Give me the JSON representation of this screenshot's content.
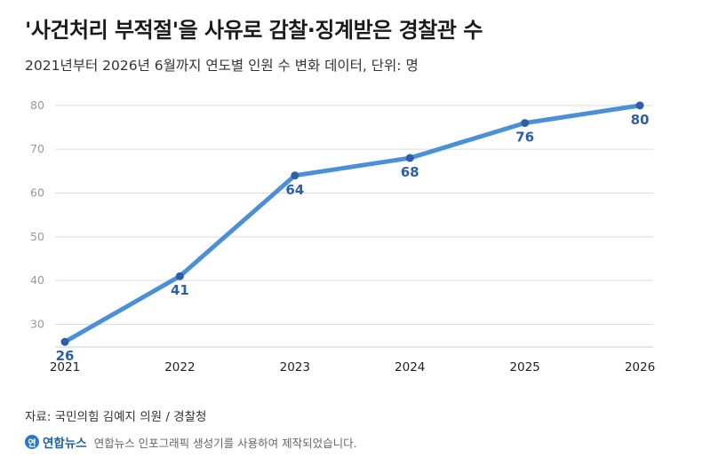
{
  "title": "'사건처리 부적절'을 사유로 감찰·징계받은 경찰관 수",
  "subtitle": "2021년부터 2026년 6월까지 연도별 인원 수 변화 데이터, 단위: 명",
  "source": "자료: 국민의힘 김예지 의원 / 경찰청",
  "footer": {
    "logo_text": "연합뉴스",
    "credit": "연합뉴스 인포그래픽 생성기를 사용하여 제작되었습니다."
  },
  "colors": {
    "line": "#4a90d9",
    "marker": "#2b5fa8",
    "label": "#2b5fa8",
    "grid": "#dcdcdc",
    "ytick": "#999999"
  },
  "chart_data": {
    "type": "line",
    "x": [
      "2021",
      "2022",
      "2023",
      "2024",
      "2025",
      "2026"
    ],
    "series": [
      {
        "values": [
          26,
          41,
          64,
          68,
          76,
          80
        ]
      }
    ],
    "ylim": [
      23,
      82
    ],
    "yticks": [
      30,
      40,
      50,
      60,
      70,
      80
    ],
    "grid": true,
    "data_labels": [
      "26",
      "41",
      "64",
      "68",
      "76",
      "80"
    ]
  }
}
